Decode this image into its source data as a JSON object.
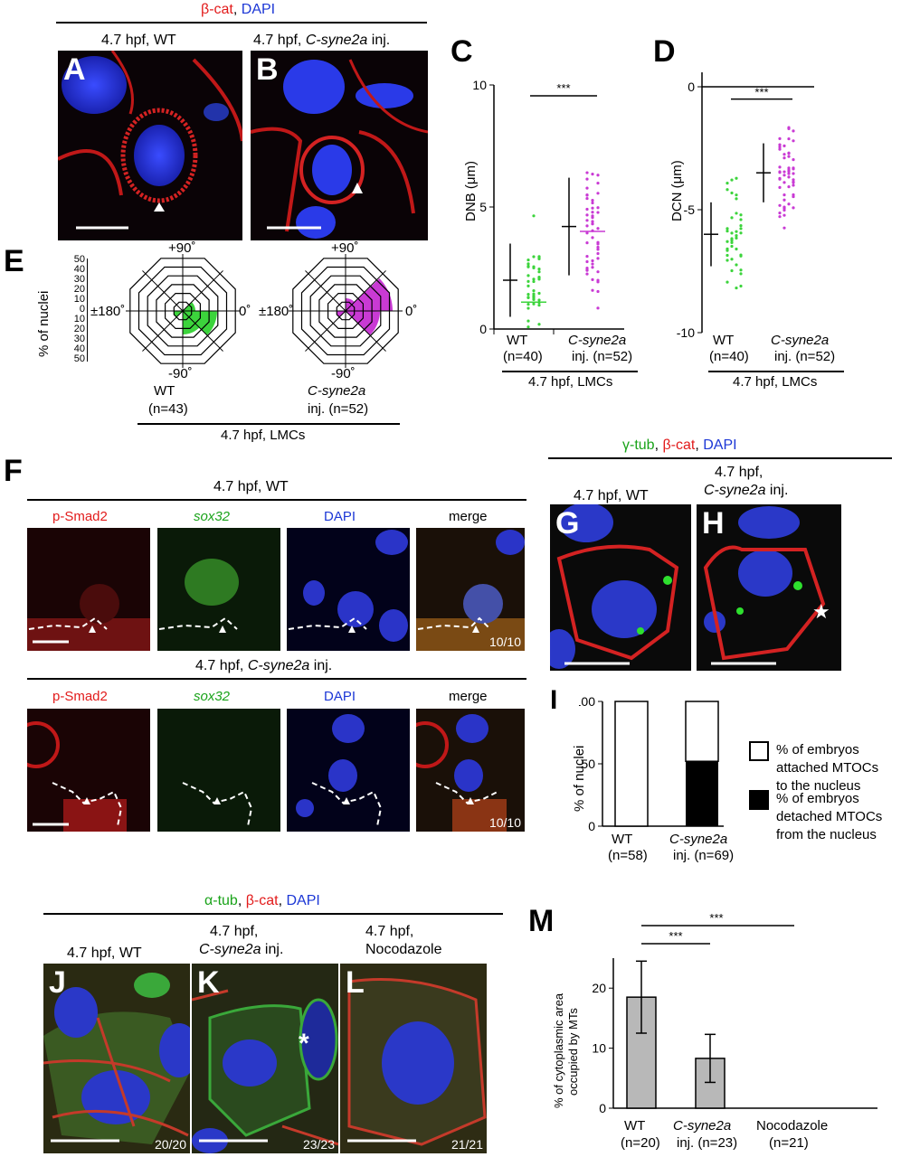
{
  "top_header": {
    "a": "β-cat",
    "sep": ", ",
    "b": "DAPI"
  },
  "panel_letters": {
    "A": "A",
    "B": "B",
    "C": "C",
    "D": "D",
    "E": "E",
    "F": "F",
    "G": "G",
    "H": "H",
    "I": "I",
    "J": "J",
    "K": "K",
    "L": "L",
    "M": "M"
  },
  "panelA": {
    "title": "4.7 hpf, WT"
  },
  "panelB": {
    "title_pre": "4.7 hpf, ",
    "title_it": "C-syne2a",
    "title_post": " inj."
  },
  "E": {
    "ylabel": "% of nuclei",
    "yticks": [
      "50",
      "40",
      "30",
      "20",
      "10",
      "0",
      "10",
      "20",
      "30",
      "40",
      "50"
    ],
    "angles": {
      "top": "+90˚",
      "bottom": "-90˚",
      "left": "±180˚",
      "right": "0˚"
    },
    "wt": {
      "name": "WT",
      "n": "(n=43)"
    },
    "cs": {
      "name": "C-syne2a",
      "n": "inj. (n=52)"
    },
    "footer": "4.7 hpf, LMCs",
    "colors": {
      "wt": "#3cd43c",
      "cs": "#c93ad4"
    }
  },
  "C": {
    "ylabel": "DNB (μm)",
    "yticks": [
      "0",
      "5",
      "10"
    ],
    "cat1": "WT",
    "cat1_n": "(n=40)",
    "cat2": "C-syne2a",
    "cat2_n": "inj. (n=52)",
    "sig": "***",
    "footer": "4.7 hpf, LMCs"
  },
  "D": {
    "ylabel": "DCN (μm)",
    "yticks": [
      "0",
      "-5",
      "-10"
    ],
    "cat1": "WT",
    "cat1_n": "(n=40)",
    "cat2": "C-syne2a",
    "cat2_n": "inj. (n=52)",
    "sig": "***",
    "footer": "4.7 hpf, LMCs"
  },
  "F": {
    "wt_title": "4.7 hpf, WT",
    "cs_title_pre": "4.7 hpf, ",
    "cs_title_it": "C-syne2a",
    "cs_title_post": " inj.",
    "cols": [
      "p-Smad2",
      "sox32",
      "DAPI",
      "merge"
    ],
    "count_wt": "10/10",
    "count_cs": "10/10"
  },
  "GH": {
    "header_a": "γ-tub",
    "header_b": "β-cat",
    "header_c": "DAPI",
    "g_title": "4.7 hpf, WT",
    "h_title1": "4.7 hpf,",
    "h_title2_it": "C-syne2a",
    "h_title2_post": " inj.",
    "star": "★"
  },
  "I": {
    "ylabel": "% of nuclei",
    "yticks": [
      "0",
      "50",
      "100"
    ],
    "cat1": "WT",
    "cat1_n": "(n=58)",
    "cat2": "C-syne2a",
    "cat2_n": "inj. (n=69)",
    "legend1": [
      "% of embryos",
      "attached MTOCs",
      "to the nucleus"
    ],
    "legend2": [
      "% of embryos",
      "detached MTOCs",
      "from the nucleus"
    ]
  },
  "JKL": {
    "header_a": "α-tub",
    "header_b": "β-cat",
    "header_c": "DAPI",
    "j_title": "4.7 hpf, WT",
    "k_title1": "4.7 hpf,",
    "k_title2_it": "C-syne2a",
    "k_title2_post": " inj.",
    "l_title1": "4.7 hpf,",
    "l_title2": "Nocodazole",
    "j_count": "20/20",
    "k_count": "23/23",
    "l_count": "21/21",
    "asterisk": "*"
  },
  "M": {
    "ylabel1": "% of cytoplasmic area",
    "ylabel2": "occupied by MTs",
    "yticks": [
      "0",
      "10",
      "20"
    ],
    "cats": [
      "WT",
      "C-syne2a",
      "Nocodazole"
    ],
    "ns": [
      "(n=20)",
      "inj. (n=23)",
      "(n=21)"
    ],
    "sig1": "***",
    "sig2": "***"
  },
  "chart_data": [
    {
      "type": "scatter",
      "title": "",
      "ylabel": "DNB (μm)",
      "ylim": [
        0,
        10
      ],
      "categories": [
        "WT",
        "C-syne2a inj."
      ],
      "series": [
        {
          "name": "WT",
          "mean": 2.0,
          "sd": 1.5
        },
        {
          "name": "C-syne2a inj.",
          "mean": 4.2,
          "sd": 2.0
        }
      ]
    },
    {
      "type": "scatter",
      "title": "",
      "ylabel": "DCN (μm)",
      "ylim": [
        -10,
        0
      ],
      "categories": [
        "WT",
        "C-syne2a inj."
      ],
      "series": [
        {
          "name": "WT",
          "mean": -6.0,
          "sd": 1.3
        },
        {
          "name": "C-syne2a inj.",
          "mean": -3.5,
          "sd": 1.2
        }
      ]
    },
    {
      "type": "bar",
      "title": "",
      "ylabel": "% of nuclei",
      "ylim": [
        0,
        100
      ],
      "categories": [
        "WT",
        "C-syne2a inj."
      ],
      "series": [
        {
          "name": "% of embryos detached MTOCs from the nucleus",
          "values": [
            0,
            52
          ]
        },
        {
          "name": "% of embryos attached MTOCs to the nucleus",
          "values": [
            100,
            48
          ]
        }
      ]
    },
    {
      "type": "bar",
      "title": "",
      "ylabel": "% of cytoplasmic area occupied by MTs",
      "ylim": [
        0,
        25
      ],
      "categories": [
        "WT",
        "C-syne2a inj.",
        "Nocodazole"
      ],
      "values": [
        18.5,
        8.3,
        0
      ],
      "errors": [
        6.0,
        4.0,
        0
      ]
    }
  ]
}
